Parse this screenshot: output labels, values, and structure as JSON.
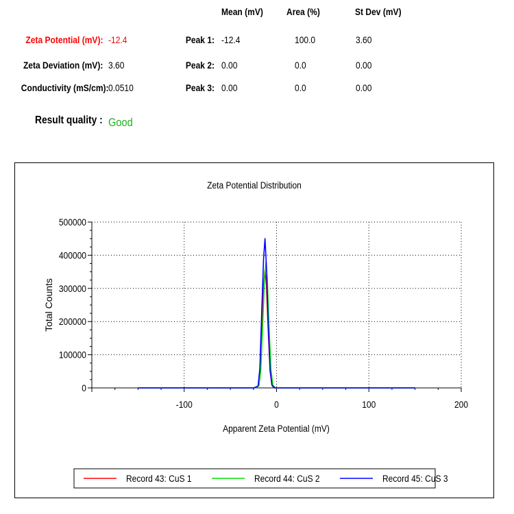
{
  "summary": {
    "zeta_potential_label": "Zeta Potential (mV):",
    "zeta_potential_value": "-12.4",
    "zeta_deviation_label": "Zeta Deviation (mV):",
    "zeta_deviation_value": "3.60",
    "conductivity_label": "Conductivity (mS/cm):",
    "conductivity_value": "0.0510",
    "result_quality_label": "Result quality :",
    "result_quality_value": "Good"
  },
  "peaks": {
    "headers": [
      "Mean (mV)",
      "Area (%)",
      "St Dev (mV)"
    ],
    "rows": [
      {
        "label": "Peak 1:",
        "mean": "-12.4",
        "area": "100.0",
        "stdev": "3.60"
      },
      {
        "label": "Peak 2:",
        "mean": "0.00",
        "area": "0.0",
        "stdev": "0.00"
      },
      {
        "label": "Peak 3:",
        "mean": "0.00",
        "area": "0.0",
        "stdev": "0.00"
      }
    ]
  },
  "colors": {
    "record_43": "#ff0000",
    "record_44": "#00e000",
    "record_45": "#0000ff",
    "good": "#22b022"
  },
  "chart_data": {
    "type": "line",
    "title": "Zeta Potential Distribution",
    "xlabel": "Apparent Zeta Potential (mV)",
    "ylabel": "Total Counts",
    "xlim": [
      -200,
      200
    ],
    "ylim": [
      0,
      500000
    ],
    "x_ticks": [
      "-100",
      "0",
      "100",
      "200"
    ],
    "x_tick_values": [
      -100,
      0,
      100,
      200
    ],
    "y_ticks": [
      "0",
      "100000",
      "200000",
      "300000",
      "400000",
      "500000"
    ],
    "y_tick_values": [
      0,
      100000,
      200000,
      300000,
      400000,
      500000
    ],
    "grid": true,
    "legend_position": "bottom",
    "series": [
      {
        "name": "Record 43: CuS 1",
        "x": [
          -150,
          -25,
          -20,
          -18,
          -16,
          -14,
          -12.5,
          -11,
          -9,
          -7,
          -5,
          -3,
          0,
          150
        ],
        "y": [
          0,
          0,
          5000,
          45000,
          170000,
          310000,
          355000,
          310000,
          170000,
          50000,
          8000,
          0,
          0,
          0
        ]
      },
      {
        "name": "Record 44: CuS 2",
        "x": [
          -150,
          -23,
          -19,
          -17,
          -15,
          -13,
          -11.5,
          -10,
          -8,
          -6,
          -4,
          -1,
          0,
          150
        ],
        "y": [
          0,
          0,
          6000,
          55000,
          190000,
          330000,
          380000,
          330000,
          180000,
          55000,
          8000,
          0,
          0,
          0
        ]
      },
      {
        "name": "Record 45: CuS 3",
        "x": [
          -150,
          -24,
          -20,
          -18,
          -16,
          -14,
          -12.5,
          -11,
          -9,
          -7,
          -5,
          -2,
          0,
          150
        ],
        "y": [
          0,
          0,
          6000,
          60000,
          230000,
          390000,
          450000,
          370000,
          190000,
          55000,
          8000,
          0,
          0,
          0
        ]
      }
    ]
  }
}
